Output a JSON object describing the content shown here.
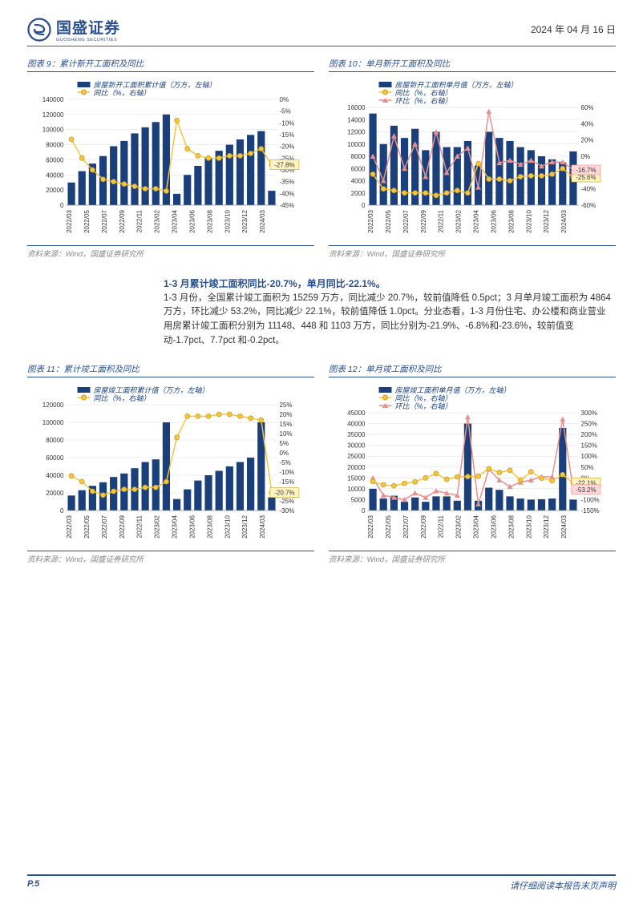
{
  "header": {
    "company_cn": "国盛证券",
    "company_en": "GUOSHENG SECURITIES",
    "date": "2024 年 04 月 16 日"
  },
  "charts": {
    "c9": {
      "title": "图表 9：累计新开工面积及同比",
      "type": "bar+line",
      "legend_bar": "房屋新开工面积累计值（万方，左轴）",
      "legend_line1": "同比（%，右轴）",
      "categories": [
        "2022/03",
        "2022/05",
        "2022/07",
        "2022/09",
        "2022/11",
        "2023/02",
        "2023/04",
        "2023/06",
        "2023/08",
        "2023/10",
        "2023/12",
        "2024/03"
      ],
      "bar_values_full": [
        30000,
        45000,
        55000,
        65000,
        78000,
        85000,
        95000,
        103000,
        110000,
        120000,
        15000,
        40000,
        52000,
        62000,
        72000,
        80000,
        87000,
        93000,
        98000,
        19000
      ],
      "line1_values_full": [
        -17,
        -25,
        -30,
        -34,
        -35,
        -36,
        -37,
        -38,
        -38,
        -39,
        -9,
        -21,
        -24,
        -25,
        -25,
        -24,
        -24,
        -23,
        -21,
        -27.8
      ],
      "y_left": {
        "min": 0,
        "max": 140000,
        "step": 20000
      },
      "y_right": {
        "min": -45,
        "max": 0,
        "step": 5
      },
      "callout1": "-27.8%",
      "bar_color": "#1a3f7a",
      "line1_color": "#f5c542",
      "marker1": "circle"
    },
    "c10": {
      "title": "图表 10：单月新开工面积及同比",
      "type": "bar+2line",
      "legend_bar": "房屋新开工面积单月值（万方，左轴）",
      "legend_line1": "同比（%，右轴）",
      "legend_line2": "环比（%，右轴）",
      "categories": [
        "2022/03",
        "2022/05",
        "2022/07",
        "2022/09",
        "2022/11",
        "2023/02",
        "2023/04",
        "2023/06",
        "2023/08",
        "2023/10",
        "2023/12",
        "2024/03"
      ],
      "bar_values_full": [
        15000,
        10000,
        13000,
        11000,
        12500,
        9000,
        12000,
        9500,
        9500,
        10500,
        6500,
        12000,
        11000,
        10500,
        9500,
        9000,
        8000,
        7500,
        7000,
        8800
      ],
      "line1_values_full": [
        -22,
        -40,
        -42,
        -45,
        -45,
        -45,
        -48,
        -45,
        -42,
        -45,
        -9,
        -28,
        -28,
        -30,
        -25,
        -24,
        -24,
        -22,
        -15,
        -25.6
      ],
      "line2_values_full": [
        0,
        -30,
        25,
        -15,
        15,
        -25,
        30,
        -20,
        0,
        10,
        -38,
        55,
        -8,
        -5,
        -10,
        -5,
        -12,
        -7,
        -7,
        -16.7
      ],
      "y_left": {
        "min": 0,
        "max": 16000,
        "step": 2000
      },
      "y_right": {
        "min": -60,
        "max": 60,
        "step": 20
      },
      "callout1": "-25.6%",
      "callout2": "-16.7%",
      "bar_color": "#1a3f7a",
      "line1_color": "#f5c542",
      "line2_color": "#e89090",
      "marker1": "circle",
      "marker2": "triangle"
    },
    "c11": {
      "title": "图表 11：累计竣工面积及同比",
      "type": "bar+line",
      "legend_bar": "房屋竣工面积累计值（万方，左轴）",
      "legend_line1": "同比（%，右轴）",
      "categories": [
        "2022/03",
        "2022/05",
        "2022/07",
        "2022/09",
        "2022/11",
        "2023/02",
        "2023/04",
        "2023/06",
        "2023/08",
        "2023/10",
        "2023/12",
        "2024/03"
      ],
      "bar_values_full": [
        17000,
        23000,
        28000,
        32000,
        38000,
        42000,
        48000,
        55000,
        58000,
        100000,
        13000,
        24000,
        34000,
        40000,
        45000,
        50000,
        55000,
        60000,
        100000,
        15000
      ],
      "line1_values_full": [
        -12,
        -15,
        -20,
        -22,
        -20,
        -19,
        -19,
        -18,
        -18,
        -15,
        8,
        19,
        19,
        19,
        20,
        20,
        19,
        18,
        17,
        -20.7
      ],
      "y_left": {
        "min": 0,
        "max": 120000,
        "step": 20000
      },
      "y_right": {
        "min": -30,
        "max": 25,
        "step": 5
      },
      "callout1": "-20.7%",
      "bar_color": "#1a3f7a",
      "line1_color": "#f5c542",
      "marker1": "circle"
    },
    "c12": {
      "title": "图表 12：单月竣工面积及同比",
      "type": "bar+2line",
      "legend_bar": "房屋竣工面积单月值（万方，左轴）",
      "legend_line1": "同比（%，右轴）",
      "legend_line2": "环比（%，右轴）",
      "categories": [
        "2022/03",
        "2022/05",
        "2022/07",
        "2022/09",
        "2022/11",
        "2023/02",
        "2023/04",
        "2023/06",
        "2023/08",
        "2023/10",
        "2023/12",
        "2024/03"
      ],
      "bar_values_full": [
        10000,
        5500,
        6800,
        4000,
        6000,
        4000,
        6500,
        6500,
        4500,
        40000,
        4500,
        10500,
        9500,
        6500,
        5500,
        5000,
        5200,
        5500,
        38000,
        5000
      ],
      "line1_values_full": [
        -16,
        -32,
        -36,
        -25,
        -18,
        0,
        20,
        -6,
        5,
        6,
        8,
        42,
        25,
        35,
        -10,
        28,
        -1,
        -13,
        15,
        -22.1
      ],
      "line2_values_full": [
        0,
        -80,
        -90,
        -100,
        -70,
        -90,
        -60,
        -70,
        -80,
        280,
        -120,
        40,
        -10,
        -40,
        -20,
        -10,
        5,
        5,
        270,
        -53.2
      ],
      "y_left": {
        "min": 0,
        "max": 45000,
        "step": 5000
      },
      "y_right": {
        "min": -150,
        "max": 300,
        "step": 50
      },
      "callout1": "-22.1%",
      "callout2": "-53.2%",
      "bar_color": "#1a3f7a",
      "line1_color": "#f5c542",
      "line2_color": "#e89090",
      "marker1": "circle",
      "marker2": "triangle"
    }
  },
  "source": "资料来源：Wind，国盛证券研究所",
  "body": {
    "headline": "1-3 月累计竣工面积同比-20.7%，单月同比-22.1%。",
    "p1": "1-3 月份，全国累计竣工面积为 15259 万方，同比减少 20.7%，较前值降低 0.5pct；3 月单月竣工面积为 4864 万方，环比减少 53.2%，同比减少 22.1%，较前值降低 1.0pct。分业态看，1-3 月份住宅、办公楼和商业营业用房累计竣工面积分别为 11148、448 和 1103 万方，同比分别为-21.9%、-6.8%和-23.6%，较前值变动-1.7pct、7.7pct 和-0.2pct。"
  },
  "footer": {
    "page": "P.5",
    "disclaimer": "请仔细阅读本报告末页声明"
  },
  "colors": {
    "brand": "#2a5090",
    "bar": "#1a3f7a",
    "yellow": "#f5c542",
    "pink": "#e89090",
    "grid": "#dcdcdc",
    "callout_bg_y": "#fff4c2",
    "callout_bg_p": "#ffd9d9"
  }
}
